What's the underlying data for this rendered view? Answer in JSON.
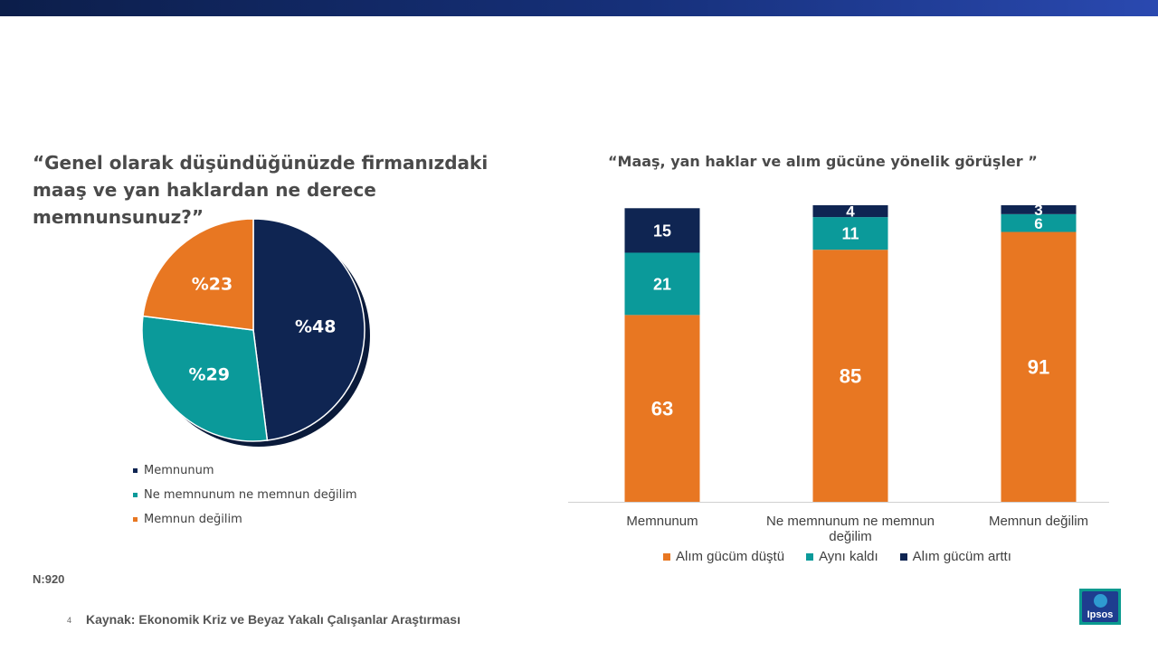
{
  "slide": {
    "page_number": "4",
    "source": "Kaynak: Ekonomik Kriz ve Beyaz Yakalı Çalışanlar Araştırması",
    "sample": "N:920",
    "logo_text": "Ipsos"
  },
  "colors": {
    "navy": "#0f2552",
    "teal": "#0b9a9a",
    "orange": "#e87722"
  },
  "chart_data": [
    {
      "type": "pie",
      "title": "“Genel olarak düşündüğünüzde firmanızdaki maaş ve yan haklardan ne derece memnunsunuz?”",
      "categories": [
        "Memnunum",
        "Ne memnunum ne memnun değilim",
        "Memnun değilim"
      ],
      "values": [
        48,
        29,
        23
      ],
      "labels": [
        "%48",
        "%29",
        "%23"
      ],
      "colors": [
        "#0f2552",
        "#0b9a9a",
        "#e87722"
      ],
      "legend": "bottom"
    },
    {
      "type": "bar",
      "stacked": true,
      "title": "“Maaş, yan haklar ve alım gücüne yönelik görüşler ”",
      "categories": [
        "Memnunum",
        "Ne memnunum ne memnun değilim",
        "Memnun değilim"
      ],
      "series": [
        {
          "name": "Alım gücüm düştü",
          "values": [
            63,
            85,
            91
          ],
          "color": "#e87722"
        },
        {
          "name": "Aynı kaldı",
          "values": [
            21,
            11,
            6
          ],
          "color": "#0b9a9a"
        },
        {
          "name": "Alım gücüm arttı",
          "values": [
            15,
            4,
            3
          ],
          "color": "#0f2552"
        }
      ],
      "ylim": [
        0,
        100
      ],
      "legend": "bottom"
    }
  ]
}
